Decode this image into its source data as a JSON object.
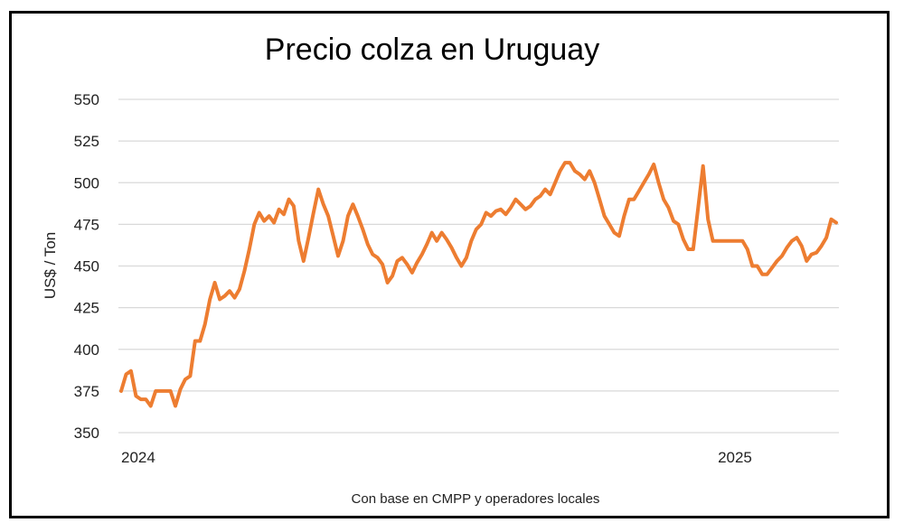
{
  "chart_data": {
    "type": "line",
    "title": "Precio colza en Uruguay",
    "ylabel": "US$ / Ton",
    "note": "Con base en CMPP y operadores locales",
    "ylim": [
      350,
      550
    ],
    "yticks": [
      350,
      375,
      400,
      425,
      450,
      475,
      500,
      525,
      550
    ],
    "xticks": [
      {
        "label": "2024",
        "index": 0
      },
      {
        "label": "2025",
        "index": 121
      }
    ],
    "grid": true,
    "color": "#ed7d31",
    "series": [
      {
        "values": [
          375,
          385,
          387,
          372,
          370,
          370,
          366,
          375,
          375,
          375,
          375,
          366,
          376,
          382,
          384,
          405,
          405,
          415,
          430,
          440,
          430,
          432,
          435,
          431,
          436,
          447,
          460,
          475,
          482,
          477,
          480,
          476,
          484,
          481,
          490,
          486,
          465,
          453,
          467,
          482,
          496,
          487,
          480,
          468,
          456,
          465,
          480,
          487,
          480,
          472,
          463,
          457,
          455,
          451,
          440,
          444,
          453,
          455,
          451,
          446,
          452,
          457,
          463,
          470,
          465,
          470,
          466,
          461,
          455,
          450,
          455,
          465,
          472,
          475,
          482,
          480,
          483,
          484,
          481,
          485,
          490,
          487,
          484,
          486,
          490,
          492,
          496,
          493,
          500,
          507,
          512,
          512,
          507,
          505,
          502,
          507,
          500,
          490,
          480,
          475,
          470,
          468,
          480,
          490,
          490,
          495,
          500,
          505,
          511,
          500,
          490,
          485,
          477,
          475,
          466,
          460,
          460,
          485,
          510,
          478,
          465,
          465,
          465,
          465,
          465,
          465,
          465,
          460,
          450,
          450,
          445,
          445,
          449,
          453,
          456,
          461,
          465,
          467,
          462,
          453,
          457,
          458,
          462,
          467,
          478,
          476
        ]
      }
    ]
  }
}
